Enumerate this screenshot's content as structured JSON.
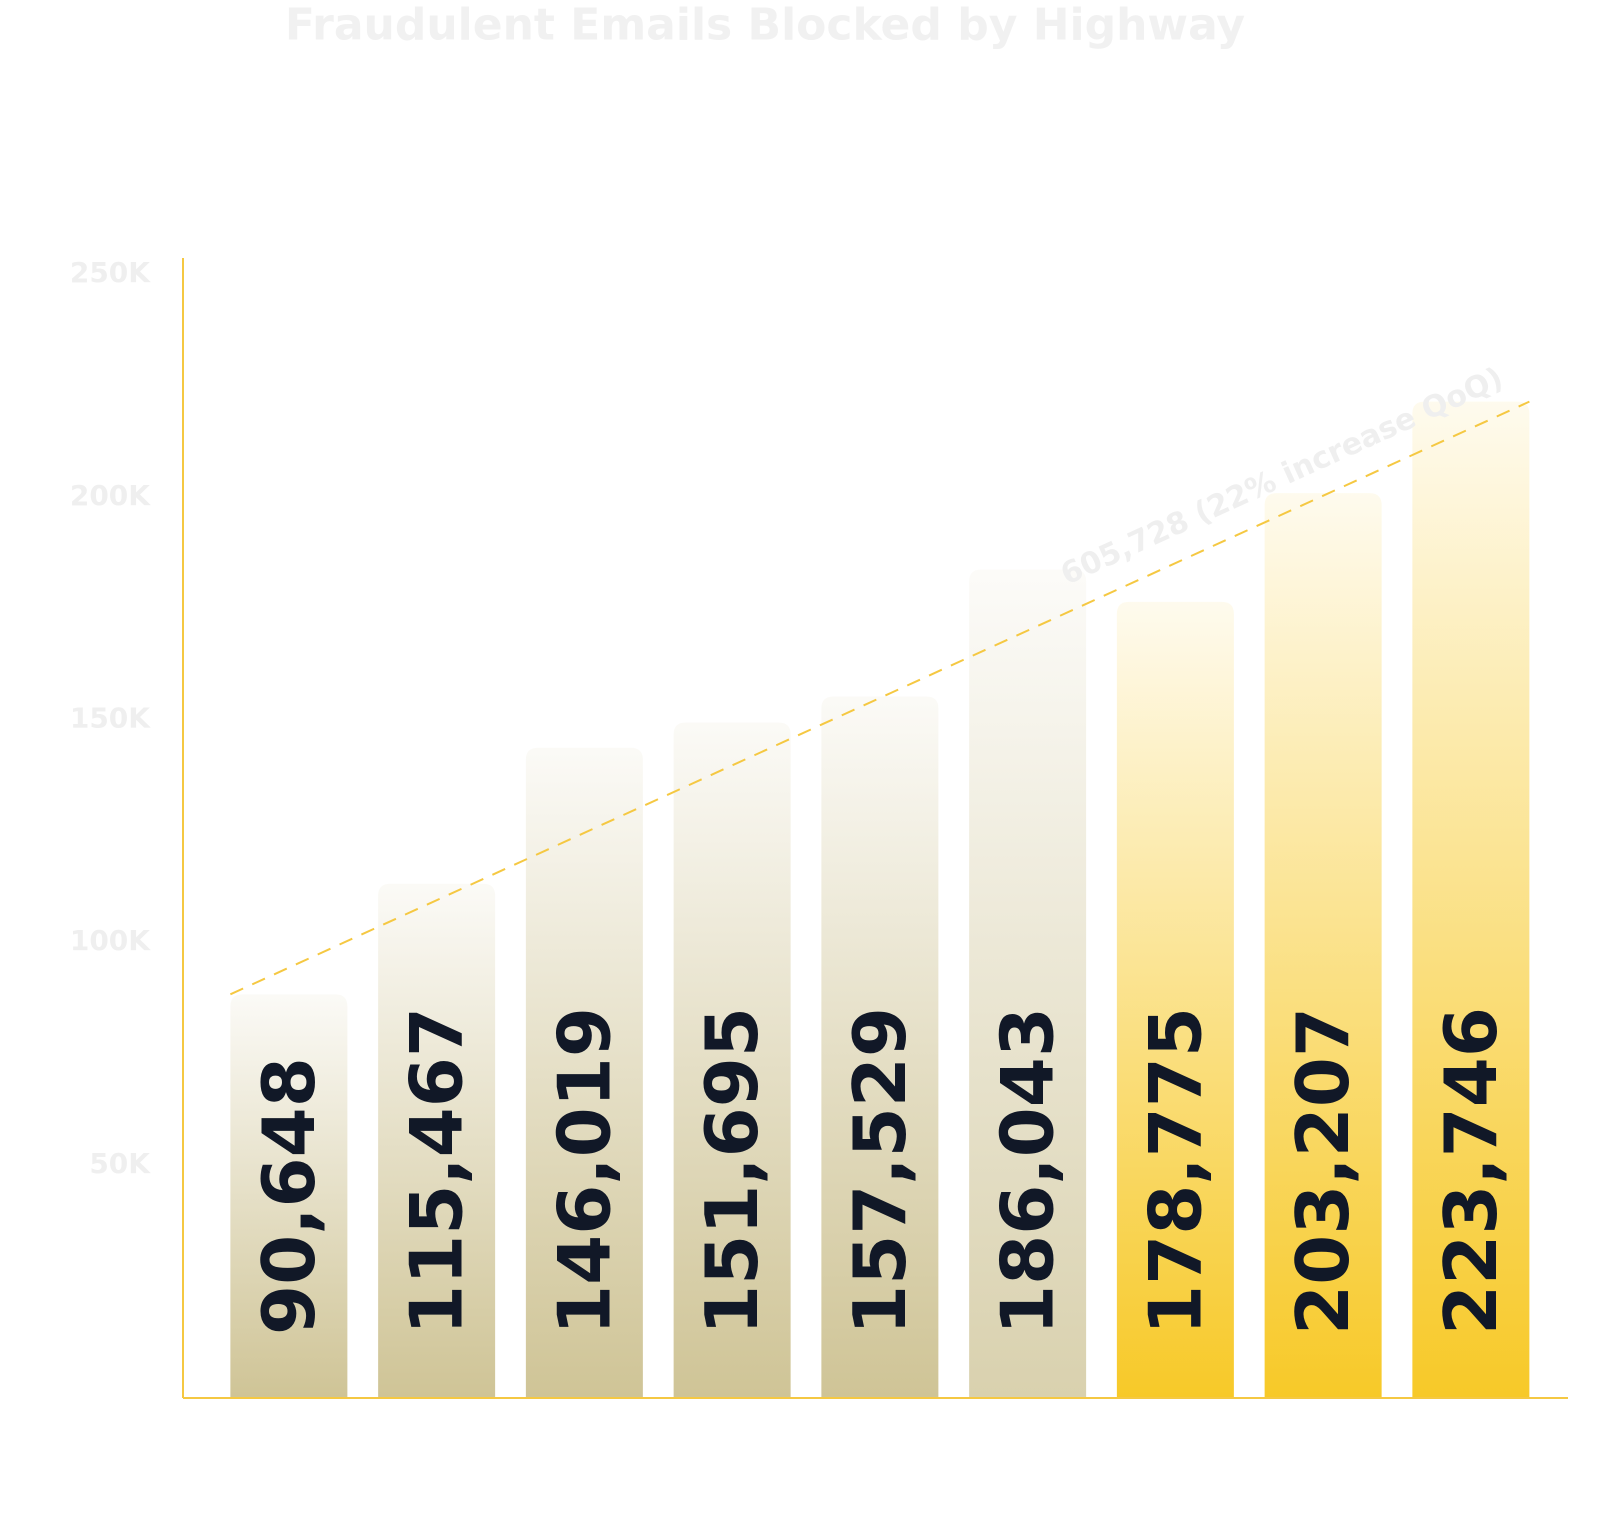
{
  "chart_data": {
    "type": "bar",
    "title": "Fraudulent Emails Blocked by Highway",
    "categories": [
      null,
      null,
      null,
      null,
      null,
      null,
      null,
      null,
      null
    ],
    "values": [
      90648,
      115467,
      146019,
      151695,
      157529,
      186043,
      178775,
      203207,
      223746
    ],
    "value_labels": [
      "90,648",
      "115,467",
      "146,019",
      "151,695",
      "157,529",
      "186,043",
      "178,775",
      "203,207",
      "223,746"
    ],
    "colors": [
      "#cfc496",
      "#cfc496",
      "#cfc496",
      "#cfc496",
      "#cfc496",
      "#d9d1ae",
      "#f7c928",
      "#f7c928",
      "#f7c928"
    ],
    "axis_color": "#f5c842",
    "trendline_color": "#f5c842",
    "annotation": "605,728 (22% increase QoQ)",
    "ylim": [
      0,
      256000
    ],
    "yticks": [
      {
        "value": 50000,
        "label": "50K"
      },
      {
        "value": 100000,
        "label": "100K"
      },
      {
        "value": 150000,
        "label": "150K"
      },
      {
        "value": 200000,
        "label": "200K"
      },
      {
        "value": 250000,
        "label": "250K"
      }
    ],
    "grid": false
  }
}
